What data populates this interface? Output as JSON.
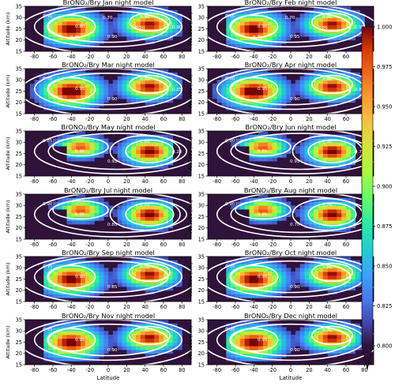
{
  "figure": {
    "xlabel": "Latitude",
    "ylabel": "Altitude (km)"
  },
  "colorbar": {
    "min": 0.8,
    "max": 1.0,
    "extend": "min",
    "ticks": [
      "0.800",
      "0.825",
      "0.850",
      "0.875",
      "0.900",
      "0.925",
      "0.950",
      "0.975",
      "1.000"
    ],
    "colormap": "turbo-like (dark blue → cyan → green → yellow → orange → dark red)",
    "background_color": "#30123b"
  },
  "chart_data": [
    {
      "type": "heatmap",
      "title": "BrONO₂/Bry Jan night model",
      "xlim": [
        -90,
        90
      ],
      "ylim": [
        15,
        35
      ],
      "xticks": [
        -80,
        -60,
        -40,
        -20,
        0,
        20,
        40,
        60,
        80
      ],
      "yticks": [
        15,
        20,
        25,
        30,
        35
      ],
      "contour_labels": [
        "0.90",
        "0.80",
        "0.90",
        "0.90",
        "0.90",
        "0.95",
        "0.70",
        "0.20"
      ]
    },
    {
      "type": "heatmap",
      "title": "BrONO₂/Bry Feb night model",
      "xlim": [
        -90,
        90
      ],
      "ylim": [
        15,
        35
      ],
      "xticks": [
        -80,
        -60,
        -40,
        -20,
        0,
        20,
        40,
        60,
        80
      ],
      "yticks": [
        15,
        20,
        25,
        30,
        35
      ],
      "contour_labels": [
        "0.80",
        "0.90",
        "0.95",
        "0.90",
        "0.90",
        "0.70",
        "0.70",
        "0.20"
      ]
    },
    {
      "type": "heatmap",
      "title": "BrONO₂/Bry Mar night model",
      "xlim": [
        -90,
        90
      ],
      "ylim": [
        15,
        35
      ],
      "xticks": [
        -80,
        -60,
        -40,
        -20,
        0,
        20,
        40,
        60,
        80
      ],
      "yticks": [
        15,
        20,
        25,
        30,
        35
      ],
      "contour_labels": [
        "0.80",
        "0.95",
        "0.90",
        "0.70",
        "0.85"
      ]
    },
    {
      "type": "heatmap",
      "title": "BrONO₂/Bry Apr night model",
      "xlim": [
        -90,
        90
      ],
      "ylim": [
        15,
        35
      ],
      "xticks": [
        -80,
        -60,
        -40,
        -20,
        0,
        20,
        40,
        60,
        80
      ],
      "yticks": [
        15,
        20,
        25,
        30,
        35
      ],
      "contour_labels": [
        "0.80",
        "0.95",
        "0.90",
        "0.85",
        "0.80"
      ]
    },
    {
      "type": "heatmap",
      "title": "BrONO₂/Bry May night model",
      "xlim": [
        -90,
        90
      ],
      "ylim": [
        15,
        35
      ],
      "xticks": [
        -80,
        -60,
        -40,
        -20,
        0,
        20,
        40,
        60,
        80
      ],
      "yticks": [
        15,
        20,
        25,
        30,
        35
      ],
      "contour_labels": [
        "0.85",
        "0.90",
        "0.95",
        "0.85",
        "0.20"
      ]
    },
    {
      "type": "heatmap",
      "title": "BrONO₂/Bry Jun night model",
      "xlim": [
        -90,
        90
      ],
      "ylim": [
        15,
        35
      ],
      "xticks": [
        -80,
        -60,
        -40,
        -20,
        0,
        20,
        40,
        60,
        80
      ],
      "yticks": [
        15,
        20,
        25,
        30,
        35
      ],
      "contour_labels": [
        "0.90",
        "0.85",
        "0.95",
        "0.90",
        "0.70"
      ]
    },
    {
      "type": "heatmap",
      "title": "BrONO₂/Bry Jul night model",
      "xlim": [
        -90,
        90
      ],
      "ylim": [
        15,
        35
      ],
      "xticks": [
        -80,
        -60,
        -40,
        -20,
        0,
        20,
        40,
        60,
        80
      ],
      "yticks": [
        15,
        20,
        25,
        30,
        35
      ],
      "contour_labels": [
        "0.90",
        "0.95",
        "0.85",
        "0.20"
      ]
    },
    {
      "type": "heatmap",
      "title": "BrONO₂/Bry Aug night model",
      "xlim": [
        -90,
        90
      ],
      "ylim": [
        15,
        35
      ],
      "xticks": [
        -80,
        -60,
        -40,
        -20,
        0,
        20,
        40,
        60,
        80
      ],
      "yticks": [
        15,
        20,
        25,
        30,
        35
      ],
      "contour_labels": [
        "0.90",
        "0.95",
        "0.70",
        "0.70"
      ]
    },
    {
      "type": "heatmap",
      "title": "BrONO₂/Bry Sep night model",
      "xlim": [
        -90,
        90
      ],
      "ylim": [
        15,
        35
      ],
      "xticks": [
        -80,
        -60,
        -40,
        -20,
        0,
        20,
        40,
        60,
        80
      ],
      "yticks": [
        15,
        20,
        25,
        30,
        35
      ],
      "contour_labels": [
        "0.95",
        "0.90",
        "0.85",
        "0.70"
      ]
    },
    {
      "type": "heatmap",
      "title": "BrONO₂/Bry Oct night model",
      "xlim": [
        -90,
        90
      ],
      "ylim": [
        15,
        35
      ],
      "xticks": [
        -80,
        -60,
        -40,
        -20,
        0,
        20,
        40,
        60,
        80
      ],
      "yticks": [
        15,
        20,
        25,
        30,
        35
      ],
      "contour_labels": [
        "0.85",
        "0.95",
        "0.90",
        "0.85"
      ]
    },
    {
      "type": "heatmap",
      "title": "BrONO₂/Bry Nov night model",
      "xlim": [
        -90,
        90
      ],
      "ylim": [
        15,
        35
      ],
      "xticks": [
        -80,
        -60,
        -40,
        -20,
        0,
        20,
        40,
        60,
        80
      ],
      "yticks": [
        15,
        20,
        25,
        30,
        35
      ],
      "contour_labels": [
        "0.85",
        "0.95",
        "0.90",
        "0.80"
      ]
    },
    {
      "type": "heatmap",
      "title": "BrONO₂/Bry Dec night model",
      "xlim": [
        -90,
        90
      ],
      "ylim": [
        15,
        35
      ],
      "xticks": [
        -80,
        -60,
        -40,
        -20,
        0,
        20,
        40,
        60,
        80
      ],
      "yticks": [
        15,
        20,
        25,
        30,
        35
      ],
      "contour_labels": [
        "0.85",
        "0.95",
        "0.90",
        "0.70"
      ]
    }
  ]
}
